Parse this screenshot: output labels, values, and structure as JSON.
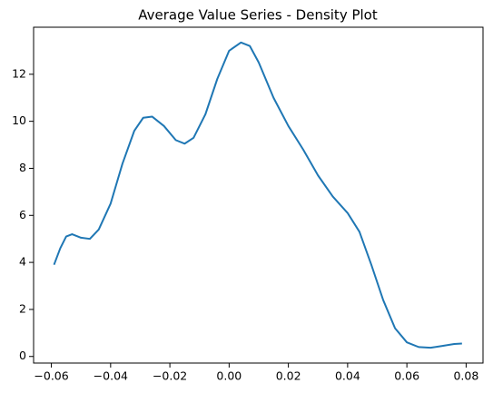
{
  "chart_data": {
    "type": "line",
    "title": "Average Value Series - Density Plot",
    "series": [
      {
        "color": "#1f77b4",
        "x": [
          -0.0591,
          -0.057,
          -0.055,
          -0.053,
          -0.05,
          -0.047,
          -0.044,
          -0.04,
          -0.036,
          -0.032,
          -0.029,
          -0.026,
          -0.022,
          -0.018,
          -0.015,
          -0.012,
          -0.008,
          -0.004,
          0.0,
          0.004,
          0.007,
          0.01,
          0.015,
          0.02,
          0.025,
          0.03,
          0.035,
          0.04,
          0.044,
          0.048,
          0.052,
          0.056,
          0.06,
          0.064,
          0.068,
          0.072,
          0.076,
          0.0786
        ],
        "values": [
          3.9,
          4.6,
          5.1,
          5.2,
          5.05,
          5.0,
          5.4,
          6.5,
          8.2,
          9.6,
          10.15,
          10.2,
          9.8,
          9.2,
          9.05,
          9.3,
          10.3,
          11.8,
          13.0,
          13.35,
          13.2,
          12.5,
          11.0,
          9.8,
          8.8,
          7.7,
          6.8,
          6.1,
          5.3,
          3.9,
          2.4,
          1.2,
          0.6,
          0.4,
          0.37,
          0.45,
          0.53,
          0.55
        ]
      }
    ],
    "xlim": [
      -0.066,
      0.0857
    ],
    "ylim": [
      -0.28,
      14.0
    ],
    "xticks": [
      {
        "value": -0.06,
        "label": "−0.06"
      },
      {
        "value": -0.04,
        "label": "−0.04"
      },
      {
        "value": -0.02,
        "label": "−0.02"
      },
      {
        "value": 0,
        "label": "0.00"
      },
      0.02,
      0.04,
      0.06,
      0.08
    ],
    "yticks": [
      0,
      2,
      4,
      6,
      8,
      10,
      12
    ],
    "grid": false
  }
}
